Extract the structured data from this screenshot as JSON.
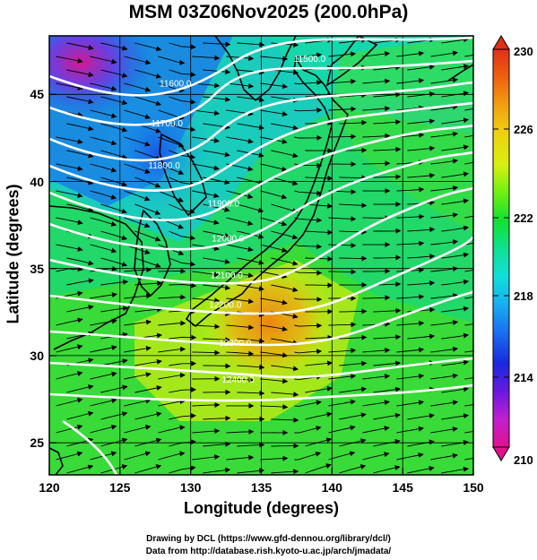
{
  "title": "MSM 03Z06Nov2025 (200.0hPa)",
  "xlabel": "Longitude (degrees)",
  "ylabel": "Latitude  (degrees)",
  "credits": {
    "line1": "Drawing by DCL (https://www.gfd-dennou.org/library/dcl/)",
    "line2": "Data from http://database.rish.kyoto-u.ac.jp/arch/jmadata/"
  },
  "map": {
    "lon_range": [
      120,
      150
    ],
    "lat_range": [
      22.4,
      47.6
    ],
    "lon_ticks": [
      "120",
      "125",
      "130",
      "135",
      "140",
      "145",
      "150"
    ],
    "lat_ticks": [
      "25",
      "30",
      "35",
      "40",
      "45"
    ],
    "grid": true,
    "fill_variable_range": [
      210,
      230
    ],
    "flow": "westerly jet, streamlines curving around a trough near Japan",
    "contour_labels": [
      {
        "text": "11500.0",
        "lon": 137.3,
        "lat": 46.1
      },
      {
        "text": "11600.0",
        "lon": 127.8,
        "lat": 44.7
      },
      {
        "text": "11700.0",
        "lon": 127.2,
        "lat": 42.4
      },
      {
        "text": "11800.0",
        "lon": 127.0,
        "lat": 40.0
      },
      {
        "text": "11900.0",
        "lon": 131.2,
        "lat": 37.8
      },
      {
        "text": "12000.0",
        "lon": 131.5,
        "lat": 35.8
      },
      {
        "text": "12100.0",
        "lon": 131.4,
        "lat": 33.7
      },
      {
        "text": "12200.0",
        "lon": 131.3,
        "lat": 32.0
      },
      {
        "text": "12300.0",
        "lon": 132.0,
        "lat": 29.8
      },
      {
        "text": "12400.0",
        "lon": 132.2,
        "lat": 27.7
      }
    ]
  },
  "colorbar": {
    "min": 210,
    "max": 230,
    "ticks": [
      "230",
      "226",
      "222",
      "218",
      "214",
      "210"
    ],
    "colors": [
      "#e0128a",
      "#c020d0",
      "#6a18e0",
      "#1a28e0",
      "#1a70f0",
      "#18b0f0",
      "#10e0d8",
      "#10e090",
      "#12e030",
      "#70f012",
      "#d8f010",
      "#f0d010",
      "#f0a010",
      "#f06010",
      "#e03018"
    ]
  }
}
